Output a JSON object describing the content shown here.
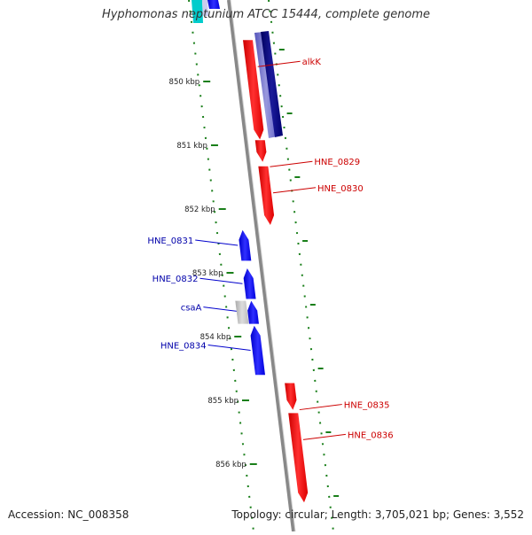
{
  "title": "Hyphomonas neptunium ATCC 15444, complete genome",
  "footer": {
    "accession": "Accession: NC_008358",
    "summary": "Topology: circular; Length: 3,705,021 bp; Genes: 3,552"
  },
  "colors": {
    "forward": "#ff0000",
    "reverse": "#0000ff",
    "backbone": "#888888",
    "ticks": "#1a7f1a",
    "other": "#bbbbbb",
    "dark_reverse": "#000080",
    "light_reverse": "#7777cc",
    "cyan": "#00cccc"
  },
  "scale": {
    "unit": "kbp",
    "ticks": [
      {
        "label": "850 kbp",
        "pos": 850000
      },
      {
        "label": "851 kbp",
        "pos": 851000
      },
      {
        "label": "852 kbp",
        "pos": 852000
      },
      {
        "label": "853 kbp",
        "pos": 853000
      },
      {
        "label": "854 kbp",
        "pos": 854000
      },
      {
        "label": "855 kbp",
        "pos": 855000
      },
      {
        "label": "856 kbp",
        "pos": 856000
      }
    ]
  },
  "genes": [
    {
      "label": "alkK",
      "strand": "+",
      "start": 849350,
      "end": 850910
    },
    {
      "label": "HNE_0829",
      "strand": "+",
      "start": 850920,
      "end": 851260
    },
    {
      "label": "HNE_0830",
      "strand": "+",
      "start": 851330,
      "end": 852250
    },
    {
      "label": "HNE_0831",
      "strand": "-",
      "start": 852330,
      "end": 852810
    },
    {
      "label": "HNE_0832",
      "strand": "-",
      "start": 852930,
      "end": 853410
    },
    {
      "label": "csaA",
      "strand": "-",
      "start": 853440,
      "end": 853800
    },
    {
      "label": "HNE_0834",
      "strand": "-",
      "start": 853830,
      "end": 854600
    },
    {
      "label": "HNE_0835",
      "strand": "+",
      "start": 854730,
      "end": 855150
    },
    {
      "label": "HNE_0836",
      "strand": "+",
      "start": 855200,
      "end": 856600
    }
  ]
}
